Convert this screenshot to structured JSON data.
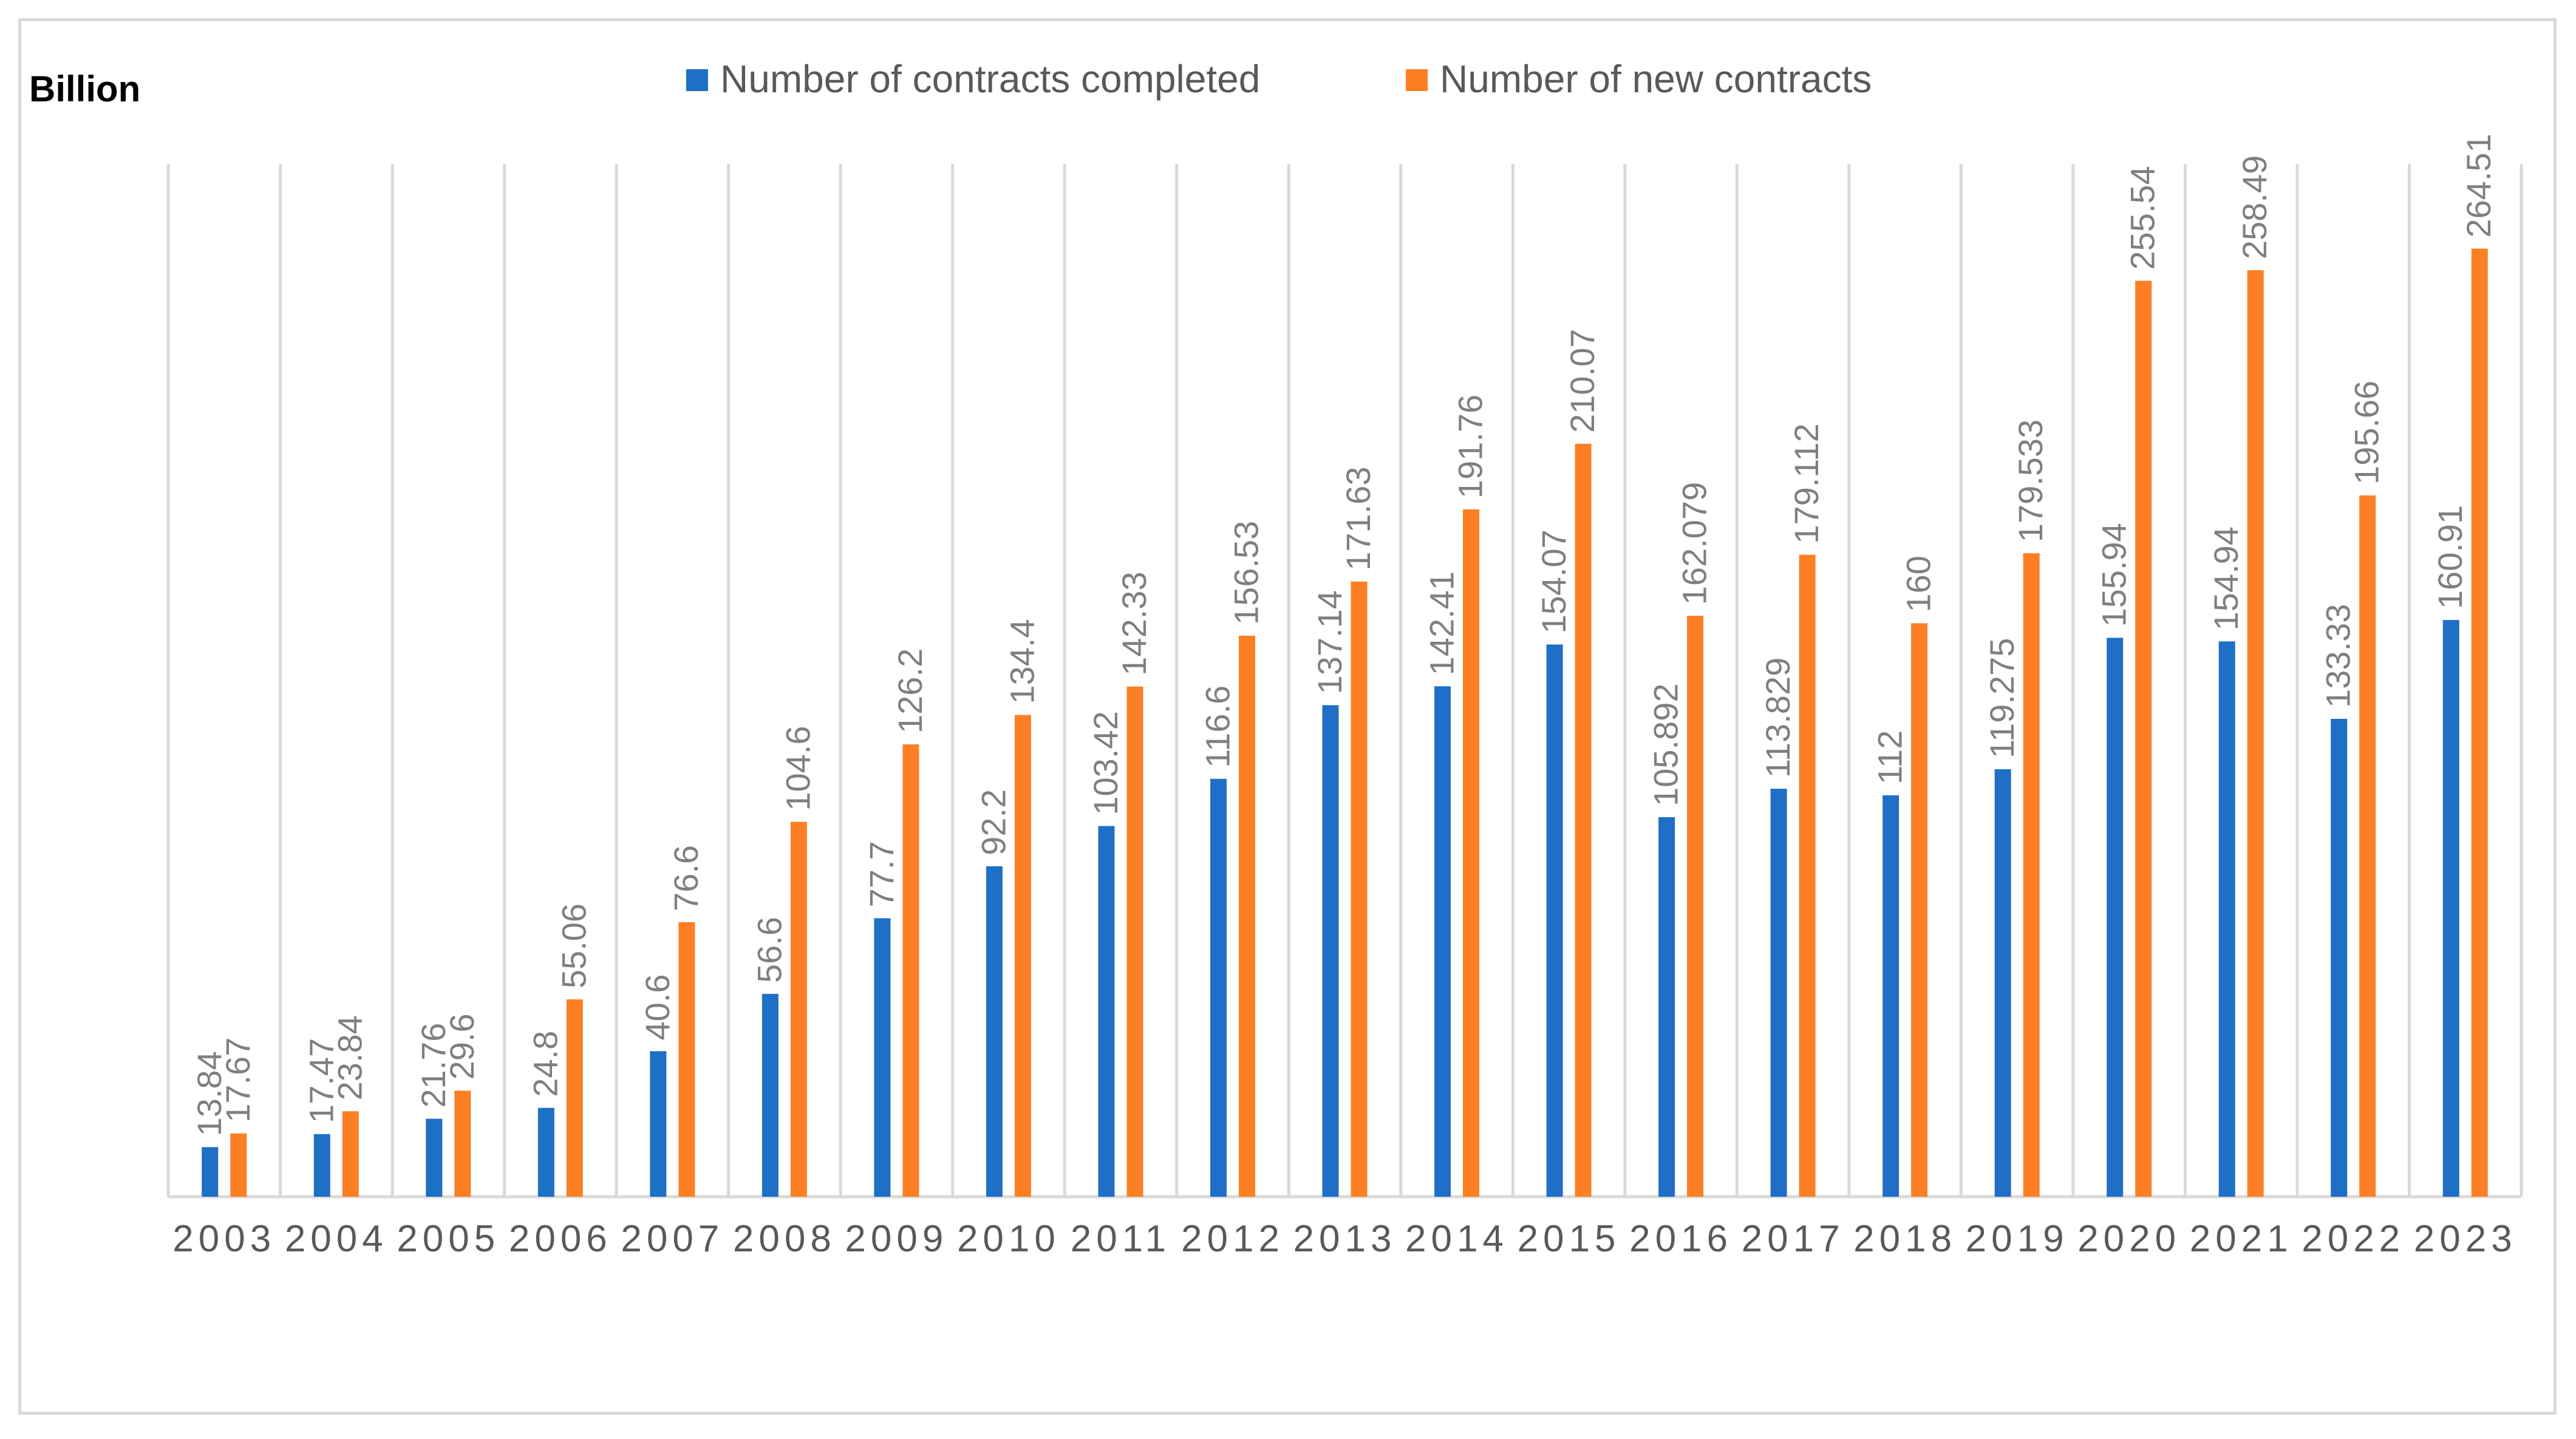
{
  "chart_data": {
    "type": "bar",
    "unit_label": "Billion",
    "categories": [
      "2003",
      "2004",
      "2005",
      "2006",
      "2007",
      "2008",
      "2009",
      "2010",
      "2011",
      "2012",
      "2013",
      "2014",
      "2015",
      "2016",
      "2017",
      "2018",
      "2019",
      "2020",
      "2021",
      "2022",
      "2023"
    ],
    "series": [
      {
        "name": "Number of contracts completed",
        "color": "#1f6fc6",
        "values": [
          13.84,
          17.47,
          21.76,
          24.8,
          40.6,
          56.6,
          77.7,
          92.2,
          103.42,
          116.6,
          137.14,
          142.41,
          154.07,
          105.892,
          113.829,
          112,
          119.275,
          155.94,
          154.94,
          133.33,
          160.91
        ]
      },
      {
        "name": "Number of new contracts",
        "color": "#fd7f23",
        "values": [
          17.67,
          23.84,
          29.6,
          55.06,
          76.6,
          104.6,
          126.2,
          134.4,
          142.33,
          156.53,
          171.63,
          191.76,
          210.07,
          162.079,
          179.112,
          160,
          179.533,
          255.54,
          258.49,
          195.66,
          264.51
        ]
      }
    ],
    "data_labels": {
      "completed": [
        "13.84",
        "17.47",
        "21.76",
        "24.8",
        "40.6",
        "56.6",
        "77.7",
        "92.2",
        "103.42",
        "116.6",
        "137.14",
        "142.41",
        "154.07",
        "105.892",
        "113.829",
        "112",
        "119.275",
        "155.94",
        "154.94",
        "133.33",
        "160.91"
      ],
      "new": [
        "17.67",
        "23.84",
        "29.6",
        "55.06",
        "76.6",
        "104.6",
        "126.2",
        "134.4",
        "142.33",
        "156.53",
        "171.63",
        "191.76",
        "210.07",
        "162.079",
        "179.112",
        "160",
        "179.533",
        "255.54",
        "258.49",
        "195.66",
        "264.51"
      ]
    },
    "title": "",
    "xlabel": "",
    "ylabel": "Billion",
    "ylim": [
      0,
      300
    ],
    "grid": "vertical category separators",
    "legend_position": "top"
  }
}
